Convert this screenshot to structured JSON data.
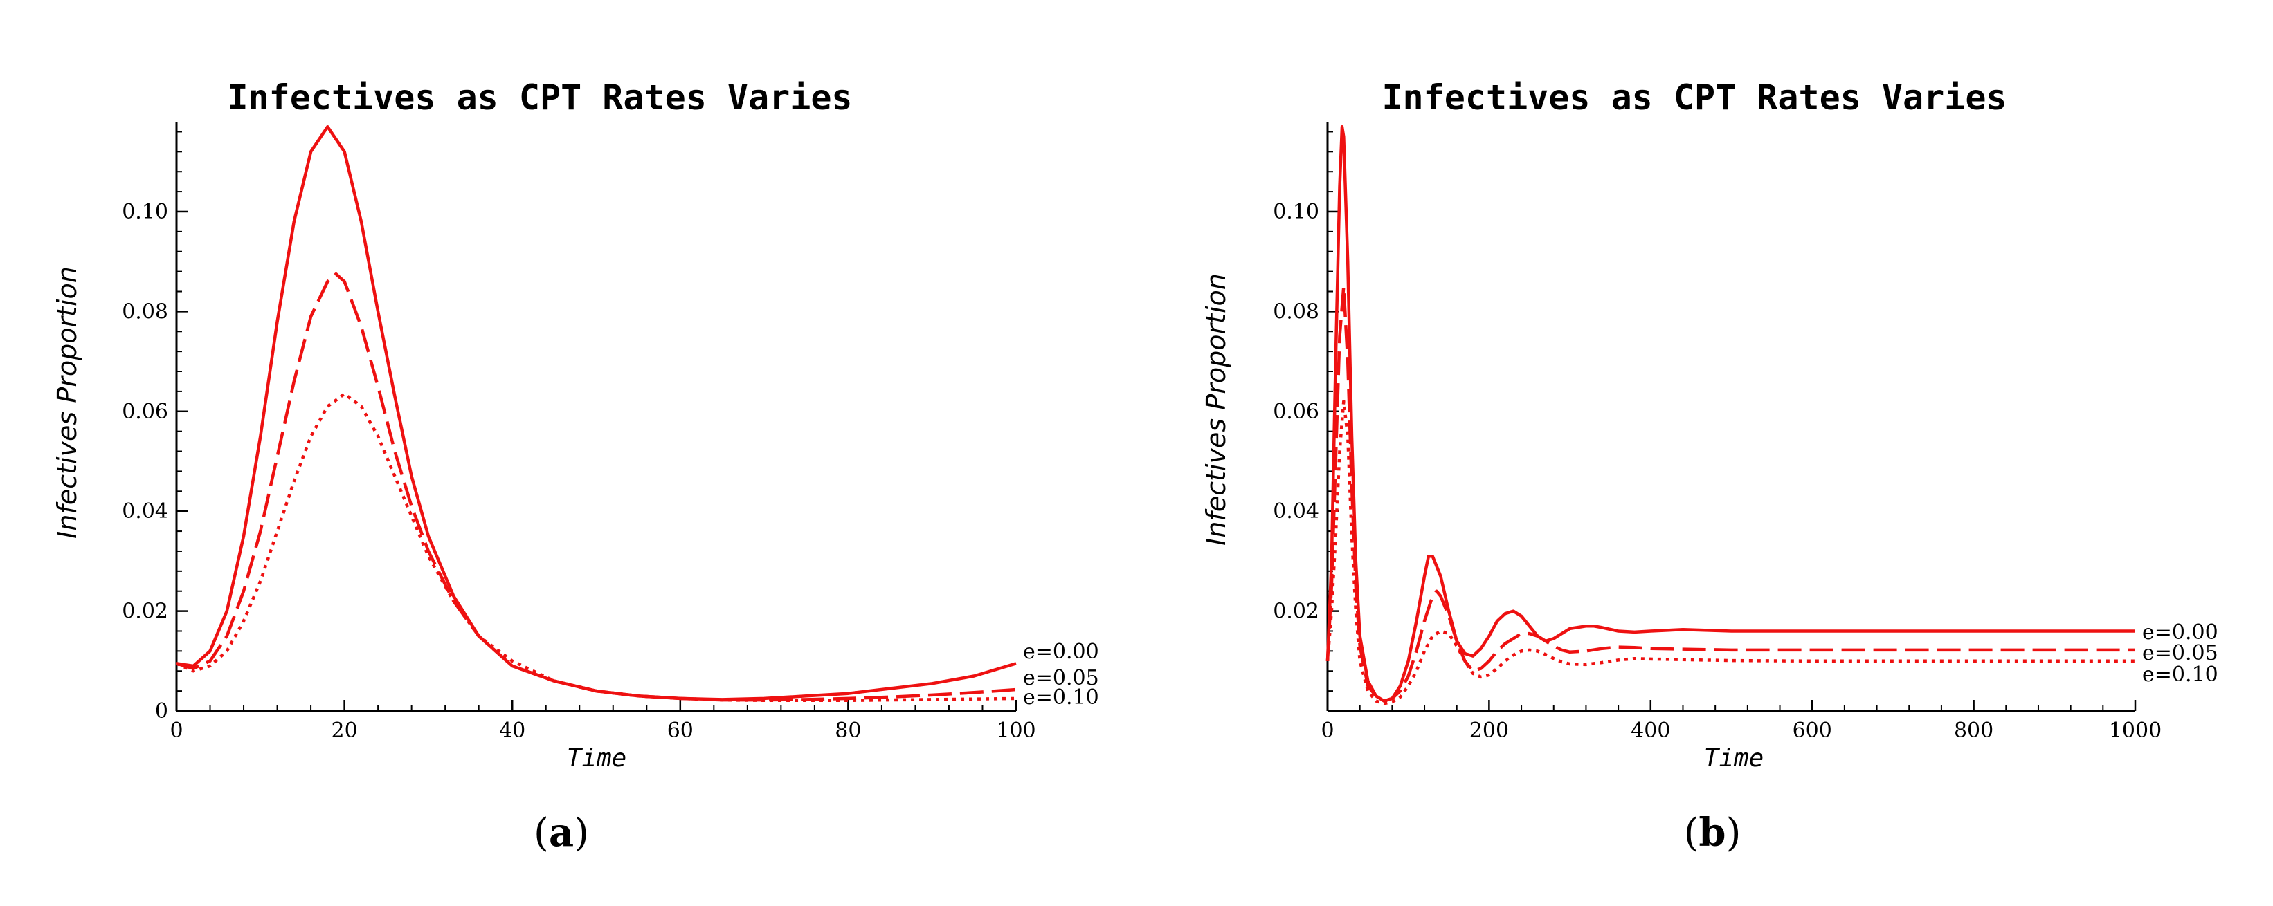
{
  "chart_data": [
    {
      "type": "line",
      "panel": "a",
      "caption": "(a)",
      "caption_letter": "a",
      "title": "Infectives as CPT Rates Varies",
      "xlabel": "Time",
      "ylabel": "Infectives Proportion",
      "xlim": [
        0,
        100
      ],
      "ylim": [
        0,
        0.118
      ],
      "xticks": [
        0,
        20,
        40,
        60,
        80,
        100
      ],
      "xtick_labels": [
        "0",
        "20",
        "40",
        "60",
        "80",
        "100"
      ],
      "yticks": [
        0,
        0.02,
        0.04,
        0.06,
        0.08,
        0.1
      ],
      "ytick_labels": [
        "0",
        "0.02",
        "0.04",
        "0.06",
        "0.08",
        "0.10"
      ],
      "series": [
        {
          "name": "e=0.00",
          "style": "solid",
          "x": [
            0,
            2,
            4,
            6,
            8,
            10,
            12,
            14,
            16,
            18,
            20,
            22,
            24,
            26,
            28,
            30,
            33,
            36,
            40,
            45,
            50,
            55,
            60,
            65,
            70,
            75,
            80,
            85,
            90,
            95,
            100
          ],
          "y": [
            0.0095,
            0.009,
            0.012,
            0.02,
            0.035,
            0.055,
            0.078,
            0.098,
            0.112,
            0.117,
            0.112,
            0.098,
            0.08,
            0.063,
            0.047,
            0.035,
            0.023,
            0.015,
            0.009,
            0.006,
            0.004,
            0.003,
            0.0025,
            0.0023,
            0.0025,
            0.003,
            0.0035,
            0.0045,
            0.0055,
            0.007,
            0.0095
          ]
        },
        {
          "name": "e=0.05",
          "style": "dashed",
          "x": [
            0,
            2,
            4,
            6,
            8,
            10,
            12,
            14,
            16,
            18,
            19,
            20,
            22,
            24,
            26,
            28,
            30,
            33,
            36,
            40,
            45,
            50,
            55,
            60,
            65,
            70,
            75,
            80,
            85,
            90,
            95,
            100
          ],
          "y": [
            0.0095,
            0.0085,
            0.01,
            0.015,
            0.024,
            0.036,
            0.051,
            0.066,
            0.079,
            0.086,
            0.0875,
            0.086,
            0.077,
            0.065,
            0.052,
            0.041,
            0.032,
            0.022,
            0.015,
            0.009,
            0.006,
            0.004,
            0.003,
            0.0025,
            0.0022,
            0.0022,
            0.0023,
            0.0025,
            0.0028,
            0.0032,
            0.0037,
            0.0043
          ]
        },
        {
          "name": "e=0.10",
          "style": "dotted",
          "x": [
            0,
            2,
            4,
            6,
            8,
            10,
            12,
            14,
            16,
            18,
            20,
            22,
            24,
            26,
            28,
            30,
            33,
            36,
            40,
            45,
            50,
            55,
            60,
            65,
            70,
            75,
            80,
            85,
            90,
            95,
            100
          ],
          "y": [
            0.0095,
            0.008,
            0.009,
            0.012,
            0.018,
            0.026,
            0.036,
            0.046,
            0.055,
            0.061,
            0.0635,
            0.061,
            0.055,
            0.047,
            0.039,
            0.031,
            0.022,
            0.015,
            0.01,
            0.006,
            0.004,
            0.003,
            0.0025,
            0.0022,
            0.0021,
            0.0021,
            0.0021,
            0.0022,
            0.0023,
            0.0024,
            0.0025
          ]
        }
      ]
    },
    {
      "type": "line",
      "panel": "b",
      "caption": "(b)",
      "caption_letter": "b",
      "title": "Infectives as CPT Rates Varies",
      "xlabel": "Time",
      "ylabel": "Infectives Proportion",
      "xlim": [
        0,
        1000
      ],
      "ylim": [
        0,
        0.118
      ],
      "xticks": [
        0,
        200,
        400,
        600,
        800,
        1000
      ],
      "xtick_labels": [
        "0",
        "200",
        "400",
        "600",
        "800",
        "1000"
      ],
      "yticks": [
        0.02,
        0.04,
        0.06,
        0.08,
        0.1
      ],
      "ytick_labels": [
        "0.02",
        "0.04",
        "0.06",
        "0.08",
        "0.10"
      ],
      "series": [
        {
          "name": "e=0.00",
          "style": "solid",
          "x": [
            0,
            5,
            10,
            15,
            18,
            20,
            25,
            30,
            35,
            40,
            50,
            60,
            70,
            80,
            90,
            100,
            110,
            120,
            125,
            130,
            140,
            150,
            160,
            170,
            180,
            190,
            200,
            210,
            220,
            230,
            240,
            250,
            260,
            270,
            280,
            290,
            300,
            320,
            330,
            340,
            360,
            380,
            400,
            440,
            500,
            600,
            700,
            800,
            900,
            1000
          ],
          "y": [
            0.01,
            0.03,
            0.07,
            0.105,
            0.117,
            0.115,
            0.09,
            0.055,
            0.03,
            0.015,
            0.006,
            0.003,
            0.002,
            0.0025,
            0.005,
            0.01,
            0.018,
            0.027,
            0.031,
            0.031,
            0.027,
            0.02,
            0.014,
            0.0115,
            0.011,
            0.0125,
            0.015,
            0.018,
            0.0195,
            0.02,
            0.019,
            0.017,
            0.015,
            0.014,
            0.0145,
            0.0155,
            0.0165,
            0.017,
            0.017,
            0.0167,
            0.016,
            0.0158,
            0.016,
            0.0163,
            0.016,
            0.016,
            0.016,
            0.016,
            0.016,
            0.016
          ]
        },
        {
          "name": "e=0.05",
          "style": "dashed",
          "x": [
            0,
            5,
            10,
            15,
            20,
            25,
            30,
            35,
            40,
            50,
            60,
            70,
            80,
            90,
            100,
            110,
            120,
            130,
            135,
            140,
            150,
            160,
            170,
            180,
            190,
            200,
            210,
            220,
            230,
            240,
            250,
            260,
            270,
            280,
            290,
            300,
            320,
            340,
            360,
            380,
            400,
            500,
            600,
            700,
            800,
            900,
            1000
          ],
          "y": [
            0.01,
            0.025,
            0.05,
            0.075,
            0.085,
            0.07,
            0.045,
            0.025,
            0.013,
            0.005,
            0.003,
            0.002,
            0.0025,
            0.004,
            0.007,
            0.012,
            0.018,
            0.023,
            0.024,
            0.023,
            0.019,
            0.014,
            0.01,
            0.008,
            0.0085,
            0.01,
            0.012,
            0.0135,
            0.0145,
            0.0155,
            0.0155,
            0.015,
            0.014,
            0.013,
            0.0122,
            0.0118,
            0.012,
            0.0125,
            0.0128,
            0.0127,
            0.0125,
            0.0122,
            0.0122,
            0.0122,
            0.0122,
            0.0122,
            0.0122
          ]
        },
        {
          "name": "e=0.10",
          "style": "dotted",
          "x": [
            0,
            5,
            10,
            15,
            20,
            25,
            30,
            35,
            40,
            50,
            60,
            70,
            80,
            90,
            100,
            110,
            120,
            130,
            140,
            150,
            160,
            170,
            180,
            190,
            200,
            210,
            220,
            230,
            240,
            250,
            260,
            270,
            280,
            290,
            300,
            320,
            340,
            360,
            380,
            400,
            500,
            600,
            700,
            800,
            900,
            1000
          ],
          "y": [
            0.01,
            0.02,
            0.035,
            0.052,
            0.062,
            0.055,
            0.035,
            0.02,
            0.01,
            0.004,
            0.002,
            0.0015,
            0.0018,
            0.0028,
            0.005,
            0.008,
            0.012,
            0.015,
            0.016,
            0.0155,
            0.013,
            0.01,
            0.0075,
            0.0068,
            0.0072,
            0.0085,
            0.01,
            0.0112,
            0.012,
            0.0122,
            0.012,
            0.0113,
            0.0105,
            0.0098,
            0.0094,
            0.0093,
            0.0097,
            0.0102,
            0.0105,
            0.0104,
            0.0101,
            0.01,
            0.01,
            0.01,
            0.01,
            0.01
          ]
        }
      ]
    }
  ]
}
